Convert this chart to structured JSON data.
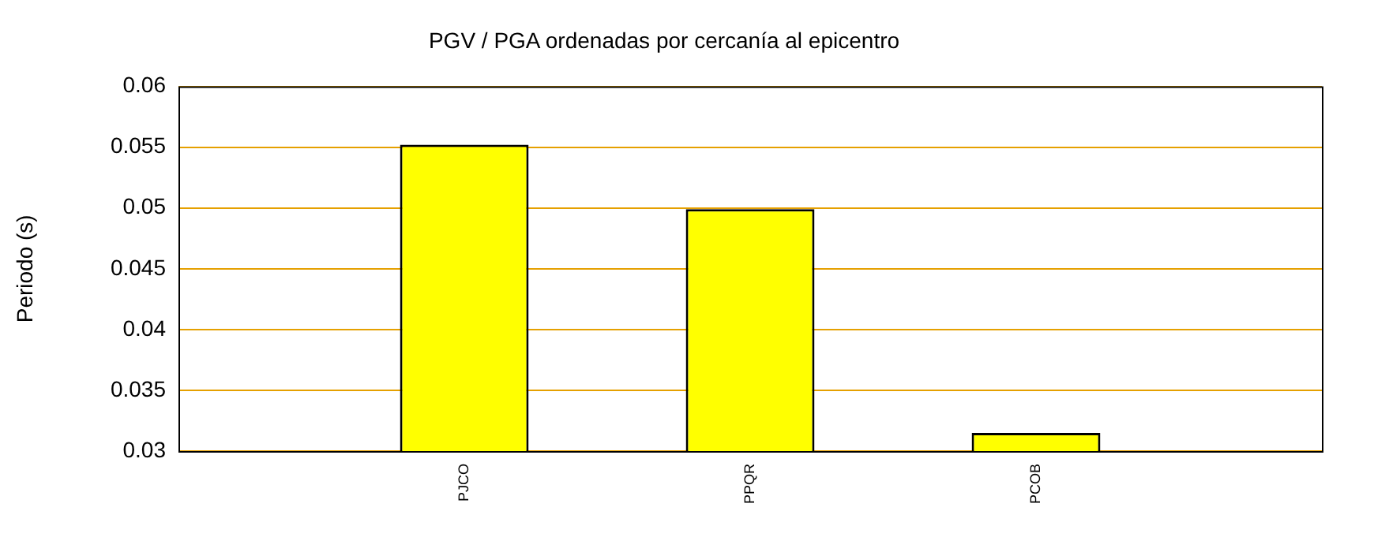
{
  "chart_data": {
    "type": "bar",
    "title": "PGV / PGA ordenadas por cercanía al epicentro",
    "ylabel": "Periodo (s)",
    "categories": [
      null,
      "PJCO",
      "PPQR",
      "PCOB",
      null
    ],
    "values": [
      null,
      0.0552,
      0.0499,
      0.0315,
      null
    ],
    "color": "#ffff00",
    "ylim": [
      0.03,
      0.06
    ],
    "yticks": [
      0.03,
      0.035,
      0.04,
      0.045,
      0.05,
      0.055,
      0.06
    ],
    "grid": "y",
    "legend": false
  }
}
